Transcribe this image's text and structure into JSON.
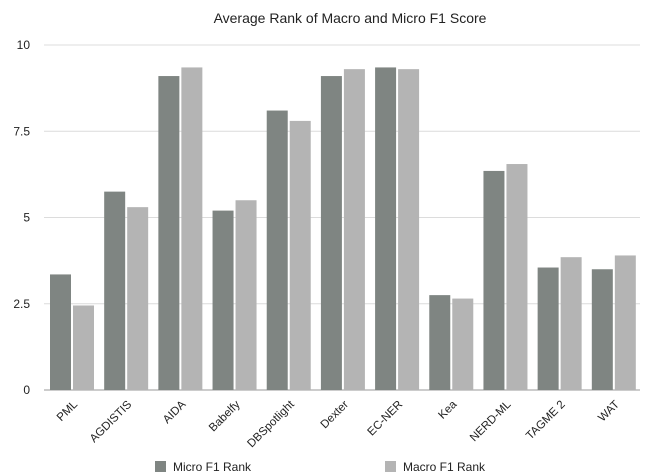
{
  "chart_data": {
    "type": "bar",
    "title": "Average Rank of Macro and Micro F1 Score",
    "xlabel": "",
    "ylabel": "",
    "categories": [
      "PML",
      "AGDISTIS",
      "AIDA",
      "Babelfy",
      "DBSpotlight",
      "Dexter",
      "EC-NER",
      "Kea",
      "NERD-ML",
      "TAGME 2",
      "WAT"
    ],
    "series": [
      {
        "name": "Micro F1 Rank",
        "color": "#7f8582",
        "values": [
          3.35,
          5.75,
          9.1,
          5.2,
          8.1,
          9.1,
          9.35,
          2.75,
          6.35,
          3.55,
          3.5
        ]
      },
      {
        "name": "Macro F1 Rank",
        "color": "#b4b4b4",
        "values": [
          2.45,
          5.3,
          9.35,
          5.5,
          7.8,
          9.3,
          9.3,
          2.65,
          6.55,
          3.85,
          3.9
        ]
      }
    ],
    "ylim": [
      0,
      10
    ],
    "yticks": [
      0,
      2.5,
      5,
      7.5,
      10
    ],
    "ytick_labels": [
      "0",
      "2.5",
      "5",
      "7.5",
      "10"
    ],
    "grid": true,
    "legend_position": "bottom"
  }
}
